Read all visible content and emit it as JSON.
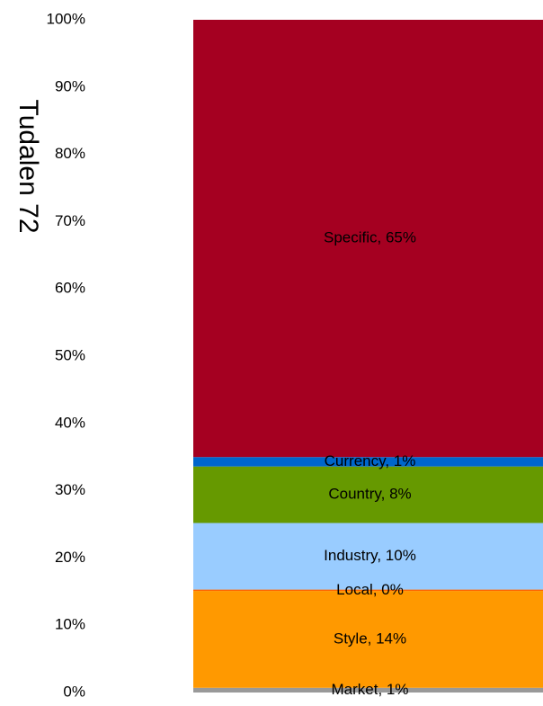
{
  "chart_data": {
    "type": "stacked_bar",
    "y_label": "Tudalen 72",
    "ylim": [
      0,
      100
    ],
    "yticks": [
      {
        "value": 0,
        "label": "0%"
      },
      {
        "value": 10,
        "label": "10%"
      },
      {
        "value": 20,
        "label": "20%"
      },
      {
        "value": 30,
        "label": "30%"
      },
      {
        "value": 40,
        "label": "40%"
      },
      {
        "value": 50,
        "label": "50%"
      },
      {
        "value": 60,
        "label": "60%"
      },
      {
        "value": 70,
        "label": "70%"
      },
      {
        "value": 80,
        "label": "80%"
      },
      {
        "value": 90,
        "label": "90%"
      },
      {
        "value": 100,
        "label": "100%"
      }
    ],
    "series": [
      {
        "color": "#999999",
        "values": [
          0.7
        ],
        "value_labels": [
          "Market, 1%"
        ]
      },
      {
        "color": "#ff9900",
        "values": [
          14.4
        ],
        "value_labels": [
          "Style, 14%"
        ]
      },
      {
        "color": "#ff6600",
        "values": [
          0.2
        ],
        "value_labels": [
          "Local, 0%"
        ]
      },
      {
        "color": "#99ccff",
        "values": [
          9.9
        ],
        "value_labels": [
          "Industry, 10%"
        ]
      },
      {
        "color": "#669900",
        "values": [
          8.4
        ],
        "value_labels": [
          "Country, 8%"
        ]
      },
      {
        "color": "#0066cc",
        "values": [
          1.4
        ],
        "value_labels": [
          "Currency, 1%"
        ]
      },
      {
        "color": "#a50021",
        "values": [
          65.0
        ],
        "value_labels": [
          "Specific, 65%"
        ]
      }
    ]
  }
}
